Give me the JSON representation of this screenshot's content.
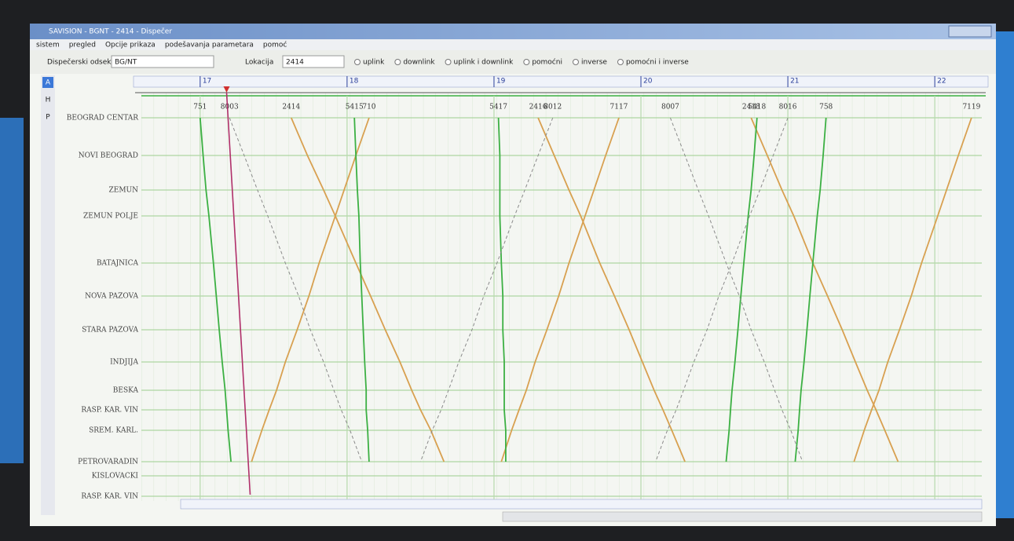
{
  "window": {
    "title": "SAVISION - BGNT - 2414 - Dispečer",
    "menu": [
      "sistem",
      "pregled",
      "Opcije prikaza",
      "podešavanja parametara",
      "pomoć"
    ],
    "section_label": "Dispečerski odsek",
    "section_value": "BG/NT",
    "location_label": "Lokacija",
    "location_value": "2414",
    "options": [
      "uplink",
      "downlink",
      "uplink i downlink",
      "pomoćni",
      "inverse",
      "pomoćni i inverse"
    ],
    "side_buttons": [
      "A",
      "H",
      "P"
    ]
  },
  "chart_data": {
    "type": "train-graph",
    "stations": [
      "BEOGRAD CENTAR",
      "NOVI BEOGRAD",
      "ZEMUN",
      "ZEMUN POLJE",
      "BATAJNICA",
      "NOVA PAZOVA",
      "STARA PAZOVA",
      "INDJIJA",
      "BESKA",
      "RASP. KAR. VIN",
      "SREM. KARL.",
      "PETROVARADIN",
      "KISLOVACKI",
      "RASP. KAR. VIN"
    ],
    "xlim": [
      16.6,
      22.32
    ],
    "xticks": [
      17,
      18,
      19,
      20,
      21,
      22
    ],
    "now": 17.18,
    "now_color": "#b0306a",
    "trains": [
      {
        "number": "2414",
        "color": "#d8a050",
        "dashed": false,
        "times": [
          17.62,
          17.73,
          17.84,
          17.92,
          18.06,
          18.16,
          18.26,
          18.36,
          18.44,
          18.5,
          18.57,
          18.66,
          null,
          null
        ]
      },
      {
        "number": "710",
        "color": "#d8a050",
        "dashed": false,
        "times": [
          18.15,
          18.06,
          17.98,
          17.92,
          17.81,
          17.74,
          17.66,
          17.58,
          17.52,
          17.47,
          17.42,
          17.35,
          null,
          null
        ]
      },
      {
        "number": "2416",
        "color": "#d8a050",
        "dashed": false,
        "times": [
          19.3,
          19.41,
          19.51,
          19.59,
          19.72,
          19.82,
          19.92,
          20.01,
          20.09,
          20.15,
          20.21,
          20.3,
          null,
          null
        ]
      },
      {
        "number": "7117",
        "color": "#d8a050",
        "dashed": false,
        "times": [
          19.85,
          19.76,
          19.68,
          19.62,
          19.51,
          19.44,
          19.36,
          19.28,
          19.22,
          19.17,
          19.12,
          19.05,
          null,
          null
        ]
      },
      {
        "number": "2418",
        "color": "#d8a050",
        "dashed": false,
        "times": [
          20.75,
          20.86,
          20.96,
          21.04,
          21.17,
          21.27,
          21.37,
          21.46,
          21.54,
          21.6,
          21.66,
          21.75,
          null,
          null
        ]
      },
      {
        "number": "7119",
        "color": "#d8a050",
        "dashed": false,
        "times": [
          22.25,
          22.16,
          22.08,
          22.02,
          21.91,
          21.84,
          21.76,
          21.68,
          21.62,
          21.57,
          21.52,
          21.45,
          null,
          null
        ]
      },
      {
        "number": "751",
        "color": "#3cb043",
        "dashed": false,
        "times": [
          17.0,
          17.02,
          17.04,
          17.06,
          17.09,
          17.11,
          17.13,
          17.15,
          17.17,
          17.18,
          17.19,
          17.21,
          null,
          null
        ]
      },
      {
        "number": "5415",
        "color": "#3cb043",
        "dashed": false,
        "times": [
          18.05,
          18.06,
          18.07,
          18.08,
          18.09,
          18.1,
          18.11,
          18.12,
          18.13,
          18.13,
          18.14,
          18.15,
          null,
          null
        ]
      },
      {
        "number": "5417",
        "color": "#3cb043",
        "dashed": false,
        "times": [
          19.03,
          19.04,
          19.04,
          19.04,
          19.05,
          19.06,
          19.06,
          19.07,
          19.07,
          19.07,
          19.08,
          19.08,
          null,
          null
        ]
      },
      {
        "number": "5418",
        "color": "#3cb043",
        "dashed": false,
        "times": [
          20.79,
          20.77,
          20.75,
          20.73,
          20.7,
          20.68,
          20.66,
          20.64,
          20.62,
          20.61,
          20.6,
          20.58,
          null,
          null
        ]
      },
      {
        "number": "758",
        "color": "#3cb043",
        "dashed": false,
        "times": [
          21.26,
          21.24,
          21.22,
          21.2,
          21.17,
          21.15,
          21.13,
          21.11,
          21.09,
          21.08,
          21.07,
          21.05,
          null,
          null
        ]
      },
      {
        "number": "8003",
        "color": "#8a8a8a",
        "dashed": true,
        "times": [
          17.2,
          17.3,
          17.39,
          17.46,
          17.58,
          17.67,
          17.75,
          17.84,
          17.91,
          17.96,
          18.02,
          18.1,
          null,
          null
        ]
      },
      {
        "number": "8012",
        "color": "#8a8a8a",
        "dashed": true,
        "times": [
          19.4,
          19.3,
          19.21,
          19.14,
          19.02,
          18.93,
          18.85,
          18.76,
          18.69,
          18.64,
          18.58,
          18.5,
          null,
          null
        ]
      },
      {
        "number": "8016",
        "color": "#8a8a8a",
        "dashed": true,
        "times": [
          21.0,
          20.9,
          20.81,
          20.74,
          20.62,
          20.53,
          20.45,
          20.36,
          20.29,
          20.24,
          20.18,
          20.1,
          null,
          null
        ]
      },
      {
        "number": "8007",
        "color": "#8a8a8a",
        "dashed": true,
        "times": [
          20.2,
          20.3,
          20.39,
          20.46,
          20.58,
          20.67,
          20.75,
          20.84,
          20.91,
          20.96,
          21.02,
          21.1,
          null,
          null
        ]
      }
    ]
  }
}
